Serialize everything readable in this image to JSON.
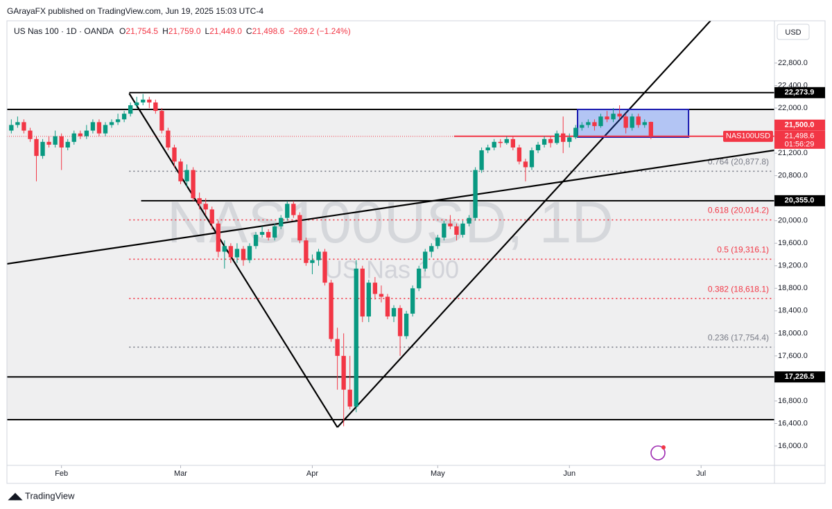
{
  "header": {
    "publisher": "GArayaFX published on TradingView.com, Jun 19, 2025 15:03 UTC-4",
    "symbol": "US Nas 100 · 1D · OANDA",
    "items": [
      {
        "key": "O",
        "text": "21,754.5"
      },
      {
        "key": "H",
        "text": "21,759.0"
      },
      {
        "key": "L",
        "text": "21,449.0"
      },
      {
        "key": "C",
        "text": "21,498.6"
      }
    ],
    "change": "−269.2 (−1.24%)",
    "currency": "USD",
    "watermark": "NAS100USD, 1D",
    "watermark_sub": "US Nas 100",
    "footer": "TradingView"
  },
  "chart_data": {
    "type": "candlestick",
    "up_color": "#089981",
    "down_color": "#f23645",
    "xlim": [
      -0.7,
      121.7
    ],
    "ylim": [
      15656,
      23550
    ],
    "xticks": [
      {
        "value": 8,
        "label": "Feb"
      },
      {
        "value": 27,
        "label": "Mar"
      },
      {
        "value": 48,
        "label": "Apr"
      },
      {
        "value": 68,
        "label": "May"
      },
      {
        "value": 89,
        "label": "Jun"
      },
      {
        "value": 110,
        "label": "Jul"
      }
    ],
    "yticks": [
      {
        "value": 22800,
        "label": "22,800.0"
      },
      {
        "value": 22400,
        "label": "22,400.0"
      },
      {
        "value": 22000,
        "label": "22,000.0"
      },
      {
        "value": 21200,
        "label": "21,200.0"
      },
      {
        "value": 20800,
        "label": "20,800.0"
      },
      {
        "value": 20000,
        "label": "20,000.0"
      },
      {
        "value": 19600,
        "label": "19,600.0"
      },
      {
        "value": 19200,
        "label": "19,200.0"
      },
      {
        "value": 18800,
        "label": "18,800.0"
      },
      {
        "value": 18400,
        "label": "18,400.0"
      },
      {
        "value": 18000,
        "label": "18,000.0"
      },
      {
        "value": 17600,
        "label": "17,600.0"
      },
      {
        "value": 16800,
        "label": "16,800.0"
      },
      {
        "value": 16400,
        "label": "16,400.0"
      },
      {
        "value": 16000,
        "label": "16,000.0"
      }
    ],
    "ohlc": [
      [
        21600,
        21800,
        21550,
        21700
      ],
      [
        21700,
        21850,
        21650,
        21750
      ],
      [
        21750,
        21800,
        21550,
        21600
      ],
      [
        21600,
        21650,
        21400,
        21450
      ],
      [
        21450,
        21500,
        20700,
        21150
      ],
      [
        21150,
        21450,
        21100,
        21400
      ],
      [
        21400,
        21500,
        21300,
        21350
      ],
      [
        21350,
        21600,
        21300,
        21500
      ],
      [
        21500,
        21550,
        20900,
        21300
      ],
      [
        21300,
        21450,
        21250,
        21400
      ],
      [
        21400,
        21600,
        21350,
        21550
      ],
      [
        21550,
        21600,
        21450,
        21500
      ],
      [
        21500,
        21700,
        21450,
        21600
      ],
      [
        21600,
        21800,
        21550,
        21750
      ],
      [
        21750,
        21800,
        21500,
        21550
      ],
      [
        21550,
        21750,
        21500,
        21700
      ],
      [
        21700,
        21800,
        21650,
        21750
      ],
      [
        21750,
        21900,
        21700,
        21800
      ],
      [
        21800,
        21950,
        21750,
        21900
      ],
      [
        21900,
        22100,
        21850,
        22050
      ],
      [
        22050,
        22200,
        22000,
        22100
      ],
      [
        22100,
        22250,
        22050,
        22150
      ],
      [
        22150,
        22200,
        22000,
        22100
      ],
      [
        22100,
        22150,
        21900,
        21950
      ],
      [
        21950,
        22000,
        21550,
        21600
      ],
      [
        21600,
        21650,
        21250,
        21300
      ],
      [
        21300,
        21350,
        20950,
        21050
      ],
      [
        21050,
        21100,
        20650,
        20700
      ],
      [
        20700,
        21000,
        20600,
        20900
      ],
      [
        20900,
        20950,
        20350,
        20400
      ],
      [
        20400,
        20500,
        20200,
        20300
      ],
      [
        20300,
        20400,
        20100,
        20200
      ],
      [
        20200,
        20250,
        19850,
        19950
      ],
      [
        19950,
        20000,
        19350,
        19450
      ],
      [
        19450,
        19650,
        19150,
        19550
      ],
      [
        19550,
        19600,
        19250,
        19350
      ],
      [
        19350,
        19600,
        19250,
        19500
      ],
      [
        19500,
        19550,
        19200,
        19300
      ],
      [
        19300,
        19600,
        19250,
        19550
      ],
      [
        19550,
        19800,
        19500,
        19750
      ],
      [
        19750,
        19900,
        19700,
        19800
      ],
      [
        19800,
        19850,
        19650,
        19700
      ],
      [
        19700,
        19950,
        19650,
        19900
      ],
      [
        19900,
        20100,
        19850,
        20050
      ],
      [
        20050,
        20350,
        20000,
        20300
      ],
      [
        20300,
        20350,
        20050,
        20100
      ],
      [
        20100,
        20150,
        19600,
        19650
      ],
      [
        19650,
        19700,
        19200,
        19250
      ],
      [
        19250,
        19400,
        19050,
        19300
      ],
      [
        19300,
        19500,
        19200,
        19450
      ],
      [
        19450,
        19500,
        18850,
        18900
      ],
      [
        18900,
        18950,
        17850,
        17900
      ],
      [
        17900,
        18100,
        17000,
        17600
      ],
      [
        17600,
        18000,
        16350,
        17000
      ],
      [
        17000,
        17600,
        16650,
        16700
      ],
      [
        16700,
        19300,
        16600,
        19150
      ],
      [
        19150,
        19200,
        18200,
        18300
      ],
      [
        18300,
        18950,
        18200,
        18900
      ],
      [
        18900,
        19000,
        18600,
        18700
      ],
      [
        18700,
        18850,
        18550,
        18650
      ],
      [
        18650,
        18700,
        18250,
        18300
      ],
      [
        18300,
        18500,
        18200,
        18450
      ],
      [
        18450,
        18500,
        17600,
        17950
      ],
      [
        17950,
        18400,
        17900,
        18350
      ],
      [
        18350,
        18850,
        18300,
        18800
      ],
      [
        18800,
        19200,
        18750,
        19150
      ],
      [
        19150,
        19500,
        19100,
        19450
      ],
      [
        19450,
        19600,
        19350,
        19550
      ],
      [
        19550,
        19750,
        19500,
        19700
      ],
      [
        19700,
        20000,
        19650,
        19950
      ],
      [
        19950,
        20100,
        19850,
        19900
      ],
      [
        19900,
        19950,
        19650,
        19750
      ],
      [
        19750,
        20000,
        19700,
        19950
      ],
      [
        19950,
        20100,
        19900,
        20050
      ],
      [
        20050,
        20950,
        20000,
        20900
      ],
      [
        20900,
        21300,
        20850,
        21250
      ],
      [
        21250,
        21350,
        21200,
        21300
      ],
      [
        21300,
        21450,
        21250,
        21400
      ],
      [
        21400,
        21450,
        21300,
        21380
      ],
      [
        21380,
        21500,
        21350,
        21450
      ],
      [
        21450,
        21500,
        21250,
        21300
      ],
      [
        21300,
        21350,
        21000,
        21050
      ],
      [
        21050,
        21100,
        20700,
        20950
      ],
      [
        20950,
        21300,
        20900,
        21250
      ],
      [
        21250,
        21400,
        21200,
        21350
      ],
      [
        21350,
        21500,
        21300,
        21450
      ],
      [
        21450,
        21500,
        21300,
        21380
      ],
      [
        21380,
        21600,
        21350,
        21550
      ],
      [
        21550,
        21850,
        21200,
        21400
      ],
      [
        21400,
        21550,
        21300,
        21480
      ],
      [
        21480,
        21700,
        21450,
        21650
      ],
      [
        21650,
        21750,
        21600,
        21700
      ],
      [
        21700,
        21800,
        21650,
        21750
      ],
      [
        21750,
        21800,
        21600,
        21680
      ],
      [
        21680,
        21900,
        21650,
        21850
      ],
      [
        21850,
        21950,
        21750,
        21800
      ],
      [
        21800,
        22000,
        21750,
        21900
      ],
      [
        21900,
        22050,
        21800,
        21850
      ],
      [
        21850,
        21900,
        21550,
        21650
      ],
      [
        21650,
        21900,
        21600,
        21850
      ],
      [
        21850,
        21900,
        21650,
        21700
      ],
      [
        21700,
        21800,
        21650,
        21750
      ],
      [
        21754.5,
        21759,
        21449,
        21498.6
      ]
    ],
    "zone": [
      21976,
      16467
    ],
    "levels": [
      {
        "value": 22273.9,
        "label": "22,273.9",
        "from": 18.8
      },
      {
        "value": 21976,
        "from": -0.7
      },
      {
        "value": 20355,
        "label": "20,355.0",
        "from": 20.7
      },
      {
        "value": 17226.5,
        "label": "17,226.5",
        "from": -0.7
      },
      {
        "value": 16467,
        "from": -0.7
      }
    ],
    "fib": [
      {
        "value": 20877.8,
        "label": "0.764 (20,877.8)",
        "color": "#787b86"
      },
      {
        "value": 20014.2,
        "label": "0.618 (20,014.2)",
        "color": "#f23645"
      },
      {
        "value": 19316.1,
        "label": "0.5 (19,316.1)",
        "color": "#f23645"
      },
      {
        "value": 18618.1,
        "label": "0.382 (18,618.1)",
        "color": "#f23645"
      },
      {
        "value": 17754.4,
        "label": "0.236 (17,754.4)",
        "color": "#787b86"
      }
    ],
    "fib_from": 18.8,
    "trendlines": [
      {
        "x": [
          18.8,
          52.0
        ],
        "y": [
          22259,
          16332
        ]
      },
      {
        "x": [
          52.0,
          111.5
        ],
        "y": [
          16332,
          23550
        ]
      },
      {
        "x": [
          -0.7,
          121.7
        ],
        "y": [
          19234,
          21251
        ]
      }
    ],
    "box": {
      "x": [
        90.3,
        108
      ],
      "y": [
        21976,
        21484
      ]
    },
    "red_level": {
      "value": 21500,
      "label": "21,500.0",
      "from": 70.6
    },
    "last": {
      "value": 21498.6,
      "label": "21,498.6",
      "name": "NAS100USD",
      "countdown": "01:56:29"
    }
  }
}
